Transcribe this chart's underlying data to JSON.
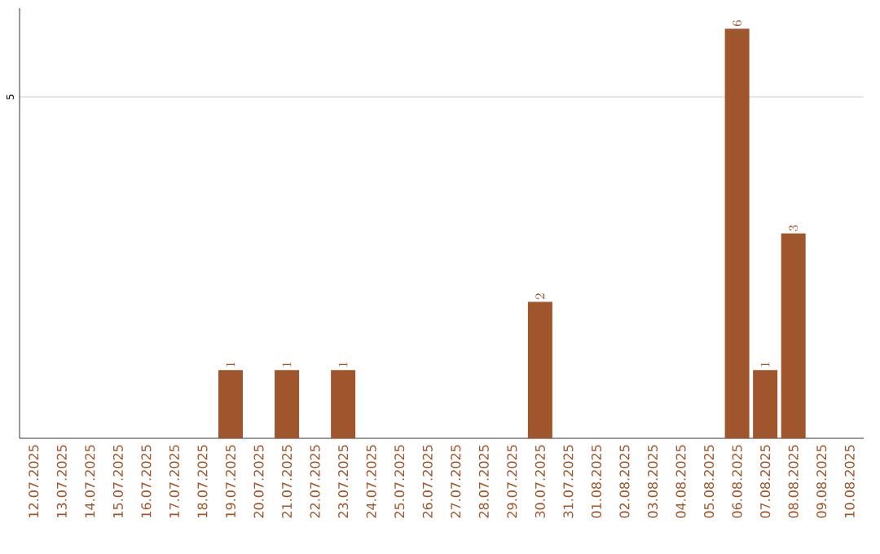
{
  "chart_data": {
    "type": "bar",
    "categories": [
      "12.07.2025",
      "13.07.2025",
      "14.07.2025",
      "15.07.2025",
      "16.07.2025",
      "17.07.2025",
      "18.07.2025",
      "19.07.2025",
      "20.07.2025",
      "21.07.2025",
      "22.07.2025",
      "23.07.2025",
      "24.07.2025",
      "25.07.2025",
      "26.07.2025",
      "27.07.2025",
      "28.07.2025",
      "29.07.2025",
      "30.07.2025",
      "31.07.2025",
      "01.08.2025",
      "02.08.2025",
      "03.08.2025",
      "04.08.2025",
      "05.08.2025",
      "06.08.2025",
      "07.08.2025",
      "08.08.2025",
      "09.08.2025",
      "10.08.2025"
    ],
    "values": [
      null,
      null,
      null,
      null,
      null,
      null,
      null,
      1,
      null,
      1,
      null,
      1,
      null,
      null,
      null,
      null,
      null,
      null,
      2,
      null,
      null,
      null,
      null,
      null,
      null,
      6,
      1,
      3,
      null,
      null
    ],
    "color": "#a0562c",
    "ylim": [
      0,
      6.3
    ],
    "yticks": [
      5
    ],
    "grid": "y",
    "data_labels": true
  }
}
